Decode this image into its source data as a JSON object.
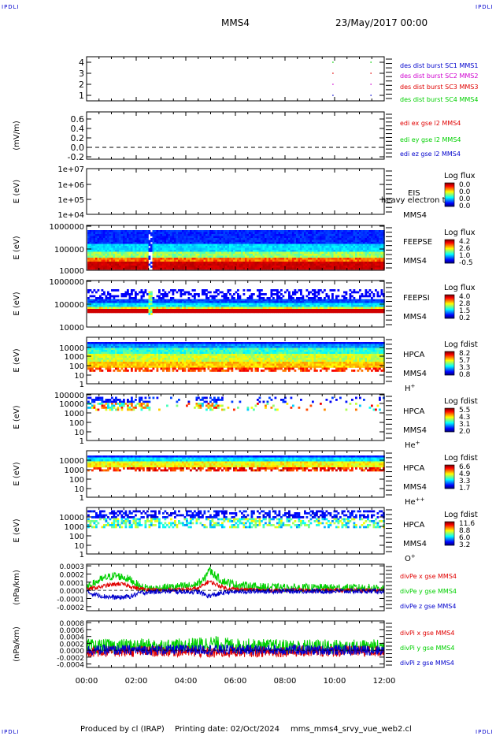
{
  "header": {
    "corner_tl": "IPDLI",
    "corner_tr": "IPDLI",
    "corner_bl": "IPDLI",
    "corner_br": "IPDLI",
    "spacecraft": "MMS4",
    "date": "23/May/2017 00:00"
  },
  "footer": {
    "produced": "Produced by cl (IRAP)",
    "printing": "Printing date: 02/Oct/2024",
    "file": "mms_mms4_srvy_vue_web2.cl"
  },
  "colors": {
    "red": "#e00000",
    "magenta": "#d000d0",
    "green": "#00d000",
    "blue": "#0000cc",
    "ink": "#000000"
  },
  "chart_data": [
    {
      "type": "scatter",
      "name": "burst",
      "yticks": [
        "1",
        "2",
        "3",
        "4"
      ],
      "ylim": [
        0.5,
        4.5
      ],
      "legend": [
        {
          "text": "des dist burst SC1 MMS1",
          "color": "#0000cc"
        },
        {
          "text": "des dist burst SC2 MMS2",
          "color": "#d000d0"
        },
        {
          "text": "des dist burst SC3 MMS3",
          "color": "#e00000"
        },
        {
          "text": "des dist burst SC4 MMS4",
          "color": "#00d000"
        }
      ],
      "marks": [
        {
          "x": "09:56",
          "y": 4,
          "color": "#00d000"
        },
        {
          "x": "09:56",
          "y": 3,
          "color": "#e00000"
        },
        {
          "x": "09:56",
          "y": 2,
          "color": "#d000d0"
        },
        {
          "x": "09:56",
          "y": 1,
          "color": "#0000cc"
        },
        {
          "x": "11:28",
          "y": 4,
          "color": "#00d000"
        },
        {
          "x": "11:28",
          "y": 3,
          "color": "#e00000"
        },
        {
          "x": "11:28",
          "y": 2,
          "color": "#d000d0"
        },
        {
          "x": "11:28",
          "y": 1,
          "color": "#0000cc"
        }
      ]
    },
    {
      "type": "line",
      "name": "edi",
      "ylabel": "(mV/m)",
      "yticks": [
        "-0.2",
        "0.0",
        "0.2",
        "0.4",
        "0.6"
      ],
      "ylim": [
        -0.25,
        0.75
      ],
      "legend": [
        {
          "text": "edi ex gse l2 MMS4",
          "color": "#e00000"
        },
        {
          "text": "edi ey gse l2 MMS4",
          "color": "#00d000"
        },
        {
          "text": "edi ez gse l2 MMS4",
          "color": "#0000cc"
        }
      ],
      "series": [
        {
          "values": [
            0.0,
            0.0
          ],
          "style": "dashed"
        }
      ]
    },
    {
      "type": "heatmap",
      "name": "eis",
      "ylabel": "E (eV)",
      "yticks": [
        "1e+04",
        "1e+05",
        "1e+06",
        "1e+07"
      ],
      "instrument": "EIS",
      "instrument_extra": "heavy electron to",
      "spacecraft": "MMS4",
      "colorbar_title": "Log flux",
      "colorbar_ticks": [
        "0.0",
        "0.0",
        "0.0",
        "0.0"
      ],
      "empty": true
    },
    {
      "type": "heatmap",
      "name": "feepse",
      "ylabel": "E (eV)",
      "yticks": [
        "10000",
        "100000",
        "1000000"
      ],
      "instrument": "FEEPSE",
      "spacecraft": "MMS4",
      "colorbar_title": "Log flux",
      "colorbar_ticks": [
        "4.2",
        "2.6",
        "1.0",
        "-0.5"
      ],
      "gap": [
        "02:27",
        "02:37"
      ]
    },
    {
      "type": "heatmap",
      "name": "feepsi",
      "ylabel": "E (eV)",
      "yticks": [
        "10000",
        "100000",
        "1000000"
      ],
      "instrument": "FEEPSI",
      "spacecraft": "MMS4",
      "colorbar_title": "Log flux",
      "colorbar_ticks": [
        "4.0",
        "2.8",
        "1.5",
        "0.2"
      ],
      "gap": [
        "02:27",
        "02:37"
      ]
    },
    {
      "type": "heatmap",
      "name": "hpca-h",
      "ylabel": "E (eV)",
      "yticks": [
        "1",
        "10",
        "100",
        "1000",
        "10000"
      ],
      "instrument": "HPCA",
      "spacecraft": "MMS4",
      "species": "H",
      "species_sup": "+",
      "colorbar_title": "Log fdist",
      "colorbar_ticks": [
        "8.2",
        "5.7",
        "3.3",
        "0.8"
      ]
    },
    {
      "type": "heatmap",
      "name": "hpca-he1",
      "ylabel": "E (eV)",
      "yticks": [
        "1",
        "10",
        "100",
        "1000",
        "10000",
        "100000"
      ],
      "instrument": "HPCA",
      "spacecraft": "MMS4",
      "species": "He",
      "species_sup": "+",
      "colorbar_title": "Log fdist",
      "colorbar_ticks": [
        "5.5",
        "4.3",
        "3.1",
        "2.0"
      ]
    },
    {
      "type": "heatmap",
      "name": "hpca-he2",
      "ylabel": "E (eV)",
      "yticks": [
        "1",
        "10",
        "100",
        "1000",
        "10000"
      ],
      "instrument": "HPCA",
      "spacecraft": "MMS4",
      "species": "He",
      "species_sup": "++",
      "colorbar_title": "Log fdist",
      "colorbar_ticks": [
        "6.6",
        "4.9",
        "3.3",
        "1.7"
      ]
    },
    {
      "type": "heatmap",
      "name": "hpca-o",
      "ylabel": "E (eV)",
      "yticks": [
        "1",
        "10",
        "100",
        "1000",
        "10000"
      ],
      "instrument": "HPCA",
      "spacecraft": "MMS4",
      "species": "O",
      "species_sup": "+",
      "colorbar_title": "Log fdist",
      "colorbar_ticks": [
        "11.6",
        "8.8",
        "6.0",
        "3.2"
      ]
    },
    {
      "type": "line",
      "name": "divpe",
      "ylabel": "(nPa/km)",
      "yticks": [
        "-0.0002",
        "-0.0001",
        "0.0000",
        "0.0001",
        "0.0002",
        "0.0003"
      ],
      "ylim": [
        -0.00025,
        0.00032
      ],
      "legend": [
        {
          "text": "divPe x gse MMS4",
          "color": "#e00000"
        },
        {
          "text": "divPe y gse MMS4",
          "color": "#00d000"
        },
        {
          "text": "divPe z gse MMS4",
          "color": "#0000cc"
        }
      ],
      "series": [
        {
          "color": "#00d000",
          "amp": 5e-05,
          "points": [
            [
              "00:00",
              2e-05
            ],
            [
              "00:10",
              6e-05
            ],
            [
              "00:30",
              0.00012
            ],
            [
              "00:50",
              0.00016
            ],
            [
              "01:10",
              0.00018
            ],
            [
              "01:30",
              0.00016
            ],
            [
              "01:50",
              0.00012
            ],
            [
              "02:10",
              4e-05
            ],
            [
              "02:40",
              2e-05
            ],
            [
              "03:30",
              4e-05
            ],
            [
              "04:20",
              6e-05
            ],
            [
              "04:45",
              0.00013
            ],
            [
              "04:55",
              0.00026
            ],
            [
              "05:05",
              0.00021
            ],
            [
              "05:25",
              0.00012
            ],
            [
              "06:00",
              7e-05
            ],
            [
              "07:00",
              4e-05
            ],
            [
              "08:00",
              3e-05
            ],
            [
              "10:00",
              3e-05
            ],
            [
              "12:00",
              3e-05
            ]
          ]
        },
        {
          "color": "#e00000",
          "amp": 2.5e-05,
          "points": [
            [
              "00:00",
              1e-05
            ],
            [
              "00:20",
              3e-05
            ],
            [
              "00:50",
              6e-05
            ],
            [
              "01:20",
              8e-05
            ],
            [
              "01:40",
              6e-05
            ],
            [
              "02:05",
              2e-05
            ],
            [
              "03:00",
              0.0
            ],
            [
              "04:30",
              2e-05
            ],
            [
              "04:55",
              0.00011
            ],
            [
              "05:10",
              8e-05
            ],
            [
              "05:40",
              2e-05
            ],
            [
              "07:00",
              0.0
            ],
            [
              "12:00",
              0.0
            ]
          ]
        },
        {
          "color": "#0000cc",
          "amp": 3e-05,
          "points": [
            [
              "00:00",
              -2e-05
            ],
            [
              "00:20",
              -5e-05
            ],
            [
              "00:50",
              -8e-05
            ],
            [
              "01:20",
              -9e-05
            ],
            [
              "01:50",
              -7e-05
            ],
            [
              "02:10",
              -3e-05
            ],
            [
              "03:00",
              -1e-05
            ],
            [
              "04:30",
              -2e-05
            ],
            [
              "04:55",
              -7e-05
            ],
            [
              "05:15",
              -5e-05
            ],
            [
              "05:40",
              -2e-05
            ],
            [
              "07:00",
              -1e-05
            ],
            [
              "12:00",
              -1e-05
            ]
          ]
        }
      ]
    },
    {
      "type": "line",
      "name": "divpi",
      "ylabel": "(nPa/km)",
      "yticks": [
        "-0.0004",
        "-0.0002",
        "0.0000",
        "0.0002",
        "0.0004",
        "0.0006",
        "0.0008"
      ],
      "ylim": [
        -0.0005,
        0.00085
      ],
      "legend": [
        {
          "text": "divPi x gse MMS4",
          "color": "#e00000"
        },
        {
          "text": "divPi y gse MMS4",
          "color": "#00d000"
        },
        {
          "text": "divPi z gse MMS4",
          "color": "#0000cc"
        }
      ],
      "series": [
        {
          "color": "#00d000",
          "amp": 0.00022,
          "points": [
            [
              "00:00",
              0.0001
            ],
            [
              "02:00",
              0.00012
            ],
            [
              "04:00",
              0.00012
            ],
            [
              "05:00",
              0.0002
            ],
            [
              "06:00",
              0.00013
            ],
            [
              "08:00",
              0.0001
            ],
            [
              "12:00",
              0.0001
            ]
          ]
        },
        {
          "color": "#e00000",
          "amp": 0.00016,
          "points": [
            [
              "00:00",
              -4e-05
            ],
            [
              "04:00",
              -3e-05
            ],
            [
              "05:00",
              -8e-05
            ],
            [
              "06:00",
              -4e-05
            ],
            [
              "12:00",
              -3e-05
            ]
          ]
        },
        {
          "color": "#0000cc",
          "amp": 0.00015,
          "points": [
            [
              "00:00",
              0.0
            ],
            [
              "05:00",
              2e-05
            ],
            [
              "12:00",
              0.0
            ]
          ]
        }
      ]
    }
  ],
  "x_axis": {
    "ticks": [
      "00:00",
      "02:00",
      "04:00",
      "06:00",
      "08:00",
      "10:00",
      "12:00"
    ],
    "xlim": [
      "00:00",
      "12:00"
    ]
  }
}
